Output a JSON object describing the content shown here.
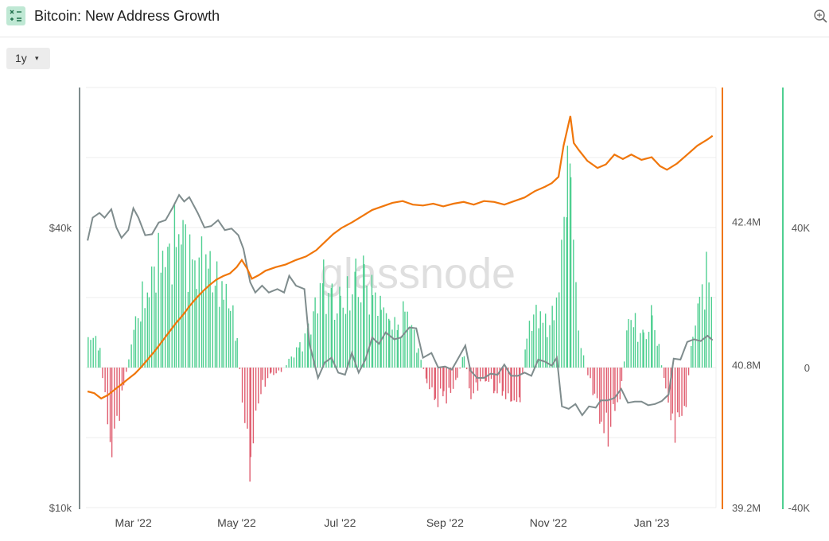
{
  "header": {
    "title": "Bitcoin: New Address Growth"
  },
  "toolbar": {
    "range_label": "1y",
    "range_caret": "▾"
  },
  "watermark": "glassnode",
  "colors": {
    "price": "#7f8c8d",
    "growth": "#f0760a",
    "positive": "#4fcf91",
    "negative": "#e05d6f"
  },
  "chart_data": {
    "type": "bar",
    "x_tick_labels": [
      "Mar '22",
      "May '22",
      "Jul '22",
      "Sep '22",
      "Nov '22",
      "Jan '23"
    ],
    "x_range": [
      "2022-02-01",
      "2023-02-08"
    ],
    "axes": {
      "price": {
        "side": "left",
        "scale": "log",
        "ticks": [
          "$10k",
          "$40k"
        ],
        "range": [
          10000,
          80000
        ]
      },
      "addresses": {
        "side": "right",
        "ticks": [
          "39.2M",
          "40.8M",
          "42.4M"
        ],
        "range": [
          39.2,
          43.9
        ]
      },
      "growth": {
        "side": "right",
        "ticks": [
          "-40K",
          "0",
          "40K"
        ],
        "range": [
          -40000,
          80000
        ]
      }
    },
    "series": [
      {
        "kind": "line",
        "axis": "price",
        "points": [
          [
            "2022-02-02",
            37500
          ],
          [
            "2022-02-05",
            42000
          ],
          [
            "2022-02-09",
            43000
          ],
          [
            "2022-02-12",
            42000
          ],
          [
            "2022-02-16",
            43800
          ],
          [
            "2022-02-19",
            40000
          ],
          [
            "2022-02-22",
            38000
          ],
          [
            "2022-02-26",
            39500
          ],
          [
            "2022-03-01",
            44000
          ],
          [
            "2022-03-04",
            42000
          ],
          [
            "2022-03-08",
            38500
          ],
          [
            "2022-03-12",
            38700
          ],
          [
            "2022-03-16",
            41000
          ],
          [
            "2022-03-20",
            41500
          ],
          [
            "2022-03-24",
            44000
          ],
          [
            "2022-03-28",
            47000
          ],
          [
            "2022-03-31",
            45500
          ],
          [
            "2022-04-03",
            46500
          ],
          [
            "2022-04-08",
            43000
          ],
          [
            "2022-04-12",
            40000
          ],
          [
            "2022-04-16",
            40300
          ],
          [
            "2022-04-20",
            41500
          ],
          [
            "2022-04-24",
            39500
          ],
          [
            "2022-04-28",
            39800
          ],
          [
            "2022-05-02",
            38500
          ],
          [
            "2022-05-05",
            36000
          ],
          [
            "2022-05-09",
            30500
          ],
          [
            "2022-05-12",
            29000
          ],
          [
            "2022-05-16",
            30000
          ],
          [
            "2022-05-20",
            29000
          ],
          [
            "2022-05-25",
            29500
          ],
          [
            "2022-05-29",
            29000
          ],
          [
            "2022-06-01",
            31500
          ],
          [
            "2022-06-05",
            30000
          ],
          [
            "2022-06-10",
            29500
          ],
          [
            "2022-06-13",
            22500
          ],
          [
            "2022-06-18",
            19000
          ],
          [
            "2022-06-22",
            20500
          ],
          [
            "2022-06-26",
            21000
          ],
          [
            "2022-06-30",
            19500
          ],
          [
            "2022-07-04",
            19300
          ],
          [
            "2022-07-08",
            21500
          ],
          [
            "2022-07-12",
            19500
          ],
          [
            "2022-07-16",
            20800
          ],
          [
            "2022-07-20",
            23200
          ],
          [
            "2022-07-24",
            22500
          ],
          [
            "2022-07-28",
            23800
          ],
          [
            "2022-08-02",
            23000
          ],
          [
            "2022-08-06",
            23200
          ],
          [
            "2022-08-11",
            24400
          ],
          [
            "2022-08-15",
            24300
          ],
          [
            "2022-08-19",
            21000
          ],
          [
            "2022-08-24",
            21500
          ],
          [
            "2022-08-28",
            20000
          ],
          [
            "2022-09-01",
            20100
          ],
          [
            "2022-09-05",
            19800
          ],
          [
            "2022-09-09",
            21000
          ],
          [
            "2022-09-13",
            22300
          ],
          [
            "2022-09-16",
            19700
          ],
          [
            "2022-09-20",
            19000
          ],
          [
            "2022-09-24",
            19000
          ],
          [
            "2022-09-28",
            19400
          ],
          [
            "2022-10-02",
            19300
          ],
          [
            "2022-10-06",
            20300
          ],
          [
            "2022-10-10",
            19200
          ],
          [
            "2022-10-14",
            19200
          ],
          [
            "2022-10-18",
            19500
          ],
          [
            "2022-10-22",
            19200
          ],
          [
            "2022-10-26",
            20800
          ],
          [
            "2022-10-30",
            20600
          ],
          [
            "2022-11-03",
            20200
          ],
          [
            "2022-11-06",
            21000
          ],
          [
            "2022-11-09",
            16500
          ],
          [
            "2022-11-13",
            16300
          ],
          [
            "2022-11-17",
            16700
          ],
          [
            "2022-11-21",
            15800
          ],
          [
            "2022-11-25",
            16500
          ],
          [
            "2022-11-29",
            16400
          ],
          [
            "2022-12-02",
            17000
          ],
          [
            "2022-12-06",
            17000
          ],
          [
            "2022-12-10",
            17200
          ],
          [
            "2022-12-14",
            18000
          ],
          [
            "2022-12-18",
            16800
          ],
          [
            "2022-12-22",
            16900
          ],
          [
            "2022-12-26",
            16900
          ],
          [
            "2022-12-30",
            16600
          ],
          [
            "2023-01-03",
            16700
          ],
          [
            "2023-01-07",
            16950
          ],
          [
            "2023-01-11",
            17500
          ],
          [
            "2023-01-14",
            20900
          ],
          [
            "2023-01-18",
            20800
          ],
          [
            "2023-01-22",
            22700
          ],
          [
            "2023-01-26",
            23000
          ],
          [
            "2023-01-30",
            22800
          ],
          [
            "2023-02-03",
            23400
          ],
          [
            "2023-02-06",
            22900
          ]
        ]
      },
      {
        "kind": "line",
        "axis": "addresses",
        "points": [
          [
            "2022-02-02",
            40.5
          ],
          [
            "2022-02-06",
            40.48
          ],
          [
            "2022-02-10",
            40.42
          ],
          [
            "2022-02-14",
            40.46
          ],
          [
            "2022-02-18",
            40.52
          ],
          [
            "2022-02-22",
            40.58
          ],
          [
            "2022-02-26",
            40.64
          ],
          [
            "2022-03-02",
            40.7
          ],
          [
            "2022-03-06",
            40.78
          ],
          [
            "2022-03-10",
            40.87
          ],
          [
            "2022-03-14",
            40.96
          ],
          [
            "2022-03-18",
            41.06
          ],
          [
            "2022-03-22",
            41.16
          ],
          [
            "2022-03-26",
            41.26
          ],
          [
            "2022-03-30",
            41.35
          ],
          [
            "2022-04-03",
            41.45
          ],
          [
            "2022-04-07",
            41.54
          ],
          [
            "2022-04-11",
            41.62
          ],
          [
            "2022-04-15",
            41.69
          ],
          [
            "2022-04-19",
            41.75
          ],
          [
            "2022-04-23",
            41.79
          ],
          [
            "2022-04-27",
            41.82
          ],
          [
            "2022-05-01",
            41.89
          ],
          [
            "2022-05-04",
            41.97
          ],
          [
            "2022-05-07",
            41.88
          ],
          [
            "2022-05-10",
            41.76
          ],
          [
            "2022-05-14",
            41.8
          ],
          [
            "2022-05-18",
            41.85
          ],
          [
            "2022-05-24",
            41.89
          ],
          [
            "2022-05-30",
            41.92
          ],
          [
            "2022-06-05",
            41.97
          ],
          [
            "2022-06-11",
            42.01
          ],
          [
            "2022-06-17",
            42.08
          ],
          [
            "2022-06-22",
            42.17
          ],
          [
            "2022-06-27",
            42.26
          ],
          [
            "2022-07-02",
            42.33
          ],
          [
            "2022-07-08",
            42.39
          ],
          [
            "2022-07-14",
            42.46
          ],
          [
            "2022-07-20",
            42.53
          ],
          [
            "2022-07-26",
            42.57
          ],
          [
            "2022-08-01",
            42.61
          ],
          [
            "2022-08-07",
            42.63
          ],
          [
            "2022-08-13",
            42.59
          ],
          [
            "2022-08-19",
            42.58
          ],
          [
            "2022-08-25",
            42.6
          ],
          [
            "2022-08-31",
            42.57
          ],
          [
            "2022-09-06",
            42.6
          ],
          [
            "2022-09-12",
            42.62
          ],
          [
            "2022-09-18",
            42.59
          ],
          [
            "2022-09-24",
            42.63
          ],
          [
            "2022-09-30",
            42.62
          ],
          [
            "2022-10-06",
            42.59
          ],
          [
            "2022-10-12",
            42.63
          ],
          [
            "2022-10-18",
            42.67
          ],
          [
            "2022-10-24",
            42.74
          ],
          [
            "2022-10-30",
            42.79
          ],
          [
            "2022-11-03",
            42.83
          ],
          [
            "2022-11-07",
            42.9
          ],
          [
            "2022-11-10",
            43.25
          ],
          [
            "2022-11-14",
            43.58
          ],
          [
            "2022-11-16",
            43.28
          ],
          [
            "2022-11-19",
            43.2
          ],
          [
            "2022-11-24",
            43.08
          ],
          [
            "2022-11-30",
            43.0
          ],
          [
            "2022-12-05",
            43.04
          ],
          [
            "2022-12-10",
            43.15
          ],
          [
            "2022-12-15",
            43.1
          ],
          [
            "2022-12-20",
            43.15
          ],
          [
            "2022-12-26",
            43.09
          ],
          [
            "2023-01-01",
            43.12
          ],
          [
            "2023-01-06",
            43.02
          ],
          [
            "2023-01-10",
            42.98
          ],
          [
            "2023-01-16",
            43.05
          ],
          [
            "2023-01-22",
            43.15
          ],
          [
            "2023-01-28",
            43.25
          ],
          [
            "2023-02-03",
            43.32
          ],
          [
            "2023-02-06",
            43.36
          ]
        ]
      },
      {
        "kind": "bar",
        "axis": "growth",
        "points": [
          [
            "2022-02-02",
            8000
          ],
          [
            "2022-02-05",
            9000
          ],
          [
            "2022-02-09",
            5000
          ],
          [
            "2022-02-12",
            -10000
          ],
          [
            "2022-02-16",
            -22000
          ],
          [
            "2022-02-19",
            -16000
          ],
          [
            "2022-02-23",
            -5000
          ],
          [
            "2022-02-26",
            3000
          ],
          [
            "2022-03-02",
            12000
          ],
          [
            "2022-03-06",
            19000
          ],
          [
            "2022-03-10",
            24000
          ],
          [
            "2022-03-14",
            28000
          ],
          [
            "2022-03-18",
            31000
          ],
          [
            "2022-03-22",
            34000
          ],
          [
            "2022-03-26",
            37000
          ],
          [
            "2022-03-30",
            36000
          ],
          [
            "2022-04-03",
            33000
          ],
          [
            "2022-04-07",
            31000
          ],
          [
            "2022-04-11",
            29000
          ],
          [
            "2022-04-15",
            27000
          ],
          [
            "2022-04-19",
            25000
          ],
          [
            "2022-04-23",
            22000
          ],
          [
            "2022-04-27",
            17000
          ],
          [
            "2022-05-01",
            8000
          ],
          [
            "2022-05-04",
            -9000
          ],
          [
            "2022-05-07",
            -22000
          ],
          [
            "2022-05-09",
            -28000
          ],
          [
            "2022-05-12",
            -13000
          ],
          [
            "2022-05-16",
            -5000
          ],
          [
            "2022-05-21",
            -2000
          ],
          [
            "2022-05-27",
            -1000
          ],
          [
            "2022-06-02",
            3000
          ],
          [
            "2022-06-07",
            6000
          ],
          [
            "2022-06-12",
            10000
          ],
          [
            "2022-06-16",
            18000
          ],
          [
            "2022-06-21",
            24000
          ],
          [
            "2022-06-26",
            18000
          ],
          [
            "2022-07-01",
            17000
          ],
          [
            "2022-07-05",
            20000
          ],
          [
            "2022-07-10",
            23000
          ],
          [
            "2022-07-15",
            24000
          ],
          [
            "2022-07-20",
            20000
          ],
          [
            "2022-07-25",
            18000
          ],
          [
            "2022-07-30",
            14000
          ],
          [
            "2022-08-04",
            11000
          ],
          [
            "2022-08-08",
            17000
          ],
          [
            "2022-08-12",
            11000
          ],
          [
            "2022-08-16",
            5000
          ],
          [
            "2022-08-21",
            -4000
          ],
          [
            "2022-08-26",
            -9000
          ],
          [
            "2022-08-31",
            -8000
          ],
          [
            "2022-09-04",
            -7000
          ],
          [
            "2022-09-08",
            -3000
          ],
          [
            "2022-09-12",
            4000
          ],
          [
            "2022-09-16",
            -8000
          ],
          [
            "2022-09-20",
            -5000
          ],
          [
            "2022-09-25",
            -3000
          ],
          [
            "2022-09-30",
            -6000
          ],
          [
            "2022-10-05",
            -7000
          ],
          [
            "2022-10-10",
            -10000
          ],
          [
            "2022-10-15",
            -9000
          ],
          [
            "2022-10-19",
            9000
          ],
          [
            "2022-10-23",
            14000
          ],
          [
            "2022-10-27",
            16000
          ],
          [
            "2022-10-31",
            12000
          ],
          [
            "2022-11-04",
            14000
          ],
          [
            "2022-11-07",
            24000
          ],
          [
            "2022-11-10",
            42000
          ],
          [
            "2022-11-12",
            58000
          ],
          [
            "2022-11-14",
            66000
          ],
          [
            "2022-11-17",
            19000
          ],
          [
            "2022-11-20",
            6000
          ],
          [
            "2022-11-24",
            -2000
          ],
          [
            "2022-11-28",
            -8000
          ],
          [
            "2022-12-02",
            -15000
          ],
          [
            "2022-12-06",
            -18000
          ],
          [
            "2022-12-10",
            -13000
          ],
          [
            "2022-12-14",
            -6000
          ],
          [
            "2022-12-18",
            14000
          ],
          [
            "2022-12-22",
            12000
          ],
          [
            "2022-12-27",
            8000
          ],
          [
            "2023-01-01",
            14000
          ],
          [
            "2023-01-05",
            5000
          ],
          [
            "2023-01-09",
            -6000
          ],
          [
            "2023-01-13",
            -17000
          ],
          [
            "2023-01-17",
            -14000
          ],
          [
            "2023-01-21",
            -11000
          ],
          [
            "2023-01-25",
            10000
          ],
          [
            "2023-01-29",
            18000
          ],
          [
            "2023-02-02",
            26000
          ],
          [
            "2023-02-06",
            24000
          ]
        ]
      }
    ]
  }
}
